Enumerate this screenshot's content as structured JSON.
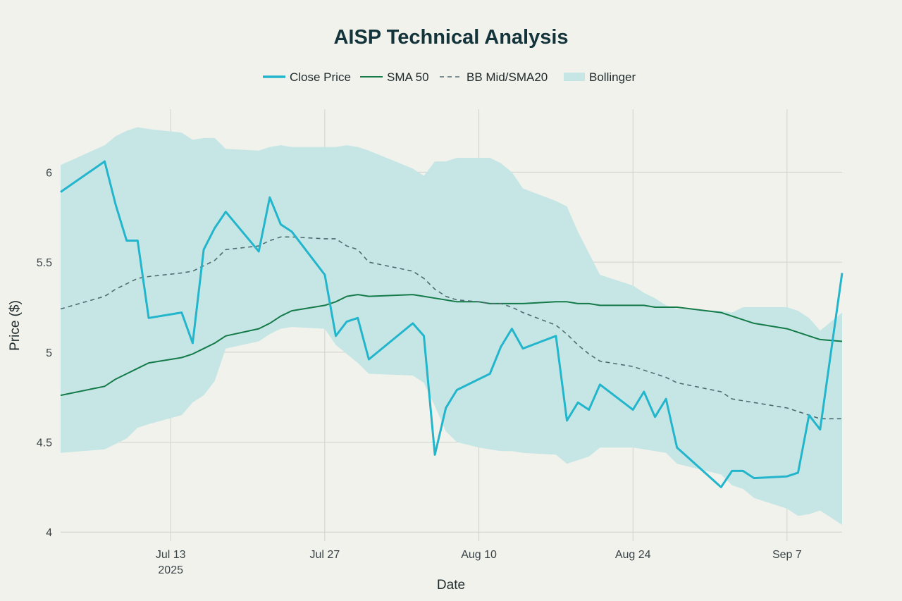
{
  "chart_data": {
    "type": "line",
    "title": "AISP Technical Analysis",
    "xlabel": "Date",
    "ylabel": "Price ($)",
    "ylim": [
      3.95,
      6.35
    ],
    "y_ticks": [
      {
        "value": 4,
        "label": "4"
      },
      {
        "value": 4.5,
        "label": "4.5"
      },
      {
        "value": 5,
        "label": "5"
      },
      {
        "value": 5.5,
        "label": "5.5"
      },
      {
        "value": 6,
        "label": "6"
      }
    ],
    "x_ticks": [
      {
        "day": 13,
        "label": "Jul 13",
        "sublabel": "2025"
      },
      {
        "day": 27,
        "label": "Jul 27",
        "sublabel": ""
      },
      {
        "day": 41,
        "label": "Aug 10",
        "sublabel": ""
      },
      {
        "day": 55,
        "label": "Aug 24",
        "sublabel": ""
      },
      {
        "day": 69,
        "label": "Sep 7",
        "sublabel": ""
      }
    ],
    "x_note": "x values are days since 2025-06-30",
    "xlim": [
      3,
      74
    ],
    "legend": [
      {
        "name": "Close Price",
        "style": "thick"
      },
      {
        "name": "SMA 50",
        "style": "solid"
      },
      {
        "name": "BB Mid/SMA20",
        "style": "dashed"
      },
      {
        "name": "Bollinger",
        "style": "band"
      }
    ],
    "colors": {
      "close": "#22b5cc",
      "sma50": "#137a48",
      "sma20": "#4e6b72",
      "band": "#c6e6e5",
      "grid": "#cfd2cc",
      "background": "#f2f2ec"
    },
    "series": [
      {
        "name": "Close Price",
        "x": [
          3,
          7,
          8,
          9,
          10,
          11,
          14,
          15,
          16,
          17,
          18,
          21,
          22,
          23,
          24,
          27,
          28,
          29,
          30,
          31,
          35,
          36,
          37,
          38,
          39,
          41,
          42,
          43,
          44,
          45,
          48,
          49,
          50,
          51,
          52,
          55,
          56,
          57,
          58,
          59,
          63,
          64,
          65,
          66,
          69,
          70,
          71,
          72,
          74
        ],
        "values": [
          5.89,
          6.06,
          5.82,
          5.62,
          5.62,
          5.19,
          5.22,
          5.05,
          5.57,
          5.69,
          5.78,
          5.56,
          5.86,
          5.71,
          5.67,
          5.43,
          5.09,
          5.17,
          5.19,
          4.96,
          5.16,
          5.09,
          4.43,
          4.69,
          4.79,
          4.85,
          4.88,
          5.03,
          5.13,
          5.02,
          5.09,
          4.62,
          4.72,
          4.68,
          4.82,
          4.68,
          4.78,
          4.64,
          4.74,
          4.47,
          4.25,
          4.34,
          4.34,
          4.3,
          4.31,
          4.33,
          4.65,
          4.57,
          5.44
        ]
      },
      {
        "name": "SMA 50",
        "x": [
          3,
          7,
          8,
          9,
          10,
          11,
          14,
          15,
          16,
          17,
          18,
          21,
          22,
          23,
          24,
          27,
          28,
          29,
          30,
          31,
          35,
          36,
          37,
          38,
          39,
          41,
          42,
          43,
          44,
          45,
          48,
          49,
          50,
          51,
          52,
          55,
          56,
          57,
          58,
          59,
          63,
          64,
          65,
          66,
          69,
          70,
          71,
          72,
          74
        ],
        "values": [
          4.76,
          4.81,
          4.85,
          4.88,
          4.91,
          4.94,
          4.97,
          4.99,
          5.02,
          5.05,
          5.09,
          5.13,
          5.16,
          5.2,
          5.23,
          5.26,
          5.28,
          5.31,
          5.32,
          5.31,
          5.32,
          5.31,
          5.3,
          5.29,
          5.28,
          5.28,
          5.27,
          5.27,
          5.27,
          5.27,
          5.28,
          5.28,
          5.27,
          5.27,
          5.26,
          5.26,
          5.26,
          5.25,
          5.25,
          5.25,
          5.22,
          5.2,
          5.18,
          5.16,
          5.13,
          5.11,
          5.09,
          5.07,
          5.06
        ]
      },
      {
        "name": "BB Mid/SMA20",
        "x": [
          3,
          7,
          8,
          9,
          10,
          11,
          14,
          15,
          16,
          17,
          18,
          21,
          22,
          23,
          24,
          27,
          28,
          29,
          30,
          31,
          35,
          36,
          37,
          38,
          39,
          41,
          42,
          43,
          44,
          45,
          48,
          49,
          50,
          51,
          52,
          55,
          56,
          57,
          58,
          59,
          63,
          64,
          65,
          66,
          69,
          70,
          71,
          72,
          74
        ],
        "values": [
          5.24,
          5.31,
          5.35,
          5.38,
          5.41,
          5.42,
          5.44,
          5.45,
          5.48,
          5.51,
          5.57,
          5.59,
          5.62,
          5.64,
          5.64,
          5.63,
          5.63,
          5.59,
          5.57,
          5.5,
          5.45,
          5.41,
          5.35,
          5.31,
          5.29,
          5.28,
          5.27,
          5.27,
          5.25,
          5.22,
          5.15,
          5.1,
          5.04,
          4.99,
          4.95,
          4.92,
          4.9,
          4.88,
          4.86,
          4.83,
          4.78,
          4.74,
          4.73,
          4.72,
          4.69,
          4.67,
          4.65,
          4.63,
          4.63
        ]
      },
      {
        "name": "Bollinger",
        "x": [
          3,
          7,
          8,
          9,
          10,
          11,
          14,
          15,
          16,
          17,
          18,
          21,
          22,
          23,
          24,
          27,
          28,
          29,
          30,
          31,
          35,
          36,
          37,
          38,
          39,
          41,
          42,
          43,
          44,
          45,
          48,
          49,
          50,
          51,
          52,
          55,
          56,
          57,
          58,
          59,
          63,
          64,
          65,
          66,
          69,
          70,
          71,
          72,
          74
        ],
        "upper": [
          6.04,
          6.15,
          6.2,
          6.23,
          6.25,
          6.24,
          6.22,
          6.18,
          6.19,
          6.19,
          6.13,
          6.12,
          6.14,
          6.15,
          6.14,
          6.14,
          6.14,
          6.15,
          6.14,
          6.12,
          6.02,
          5.98,
          6.06,
          6.06,
          6.08,
          6.08,
          6.08,
          6.05,
          6.0,
          5.91,
          5.84,
          5.81,
          5.67,
          5.55,
          5.43,
          5.37,
          5.33,
          5.3,
          5.26,
          5.24,
          5.23,
          5.22,
          5.25,
          5.25,
          5.25,
          5.23,
          5.19,
          5.12,
          5.22
        ],
        "lower": [
          4.44,
          4.46,
          4.49,
          4.52,
          4.58,
          4.6,
          4.65,
          4.72,
          4.76,
          4.84,
          5.02,
          5.06,
          5.1,
          5.13,
          5.14,
          5.13,
          5.04,
          4.99,
          4.94,
          4.88,
          4.87,
          4.83,
          4.7,
          4.56,
          4.5,
          4.47,
          4.46,
          4.45,
          4.45,
          4.44,
          4.43,
          4.38,
          4.4,
          4.42,
          4.47,
          4.47,
          4.46,
          4.45,
          4.44,
          4.38,
          4.32,
          4.26,
          4.24,
          4.19,
          4.13,
          4.09,
          4.1,
          4.12,
          4.04
        ]
      }
    ]
  }
}
